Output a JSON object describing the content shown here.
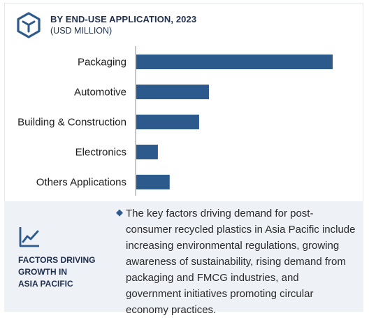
{
  "header": {
    "title": "BY END-USE APPLICATION, 2023",
    "subtitle": "(USD MILLION)",
    "icon": "cube-icon"
  },
  "chart_data": {
    "type": "bar",
    "orientation": "horizontal",
    "categories": [
      "Packaging",
      "Automotive",
      "Building & Construction",
      "Electronics",
      "Others Applications"
    ],
    "values": [
      100,
      37,
      32,
      11,
      17
    ],
    "bar_color": "#2d5a8c",
    "grid": false,
    "title": "BY END-USE APPLICATION, 2023",
    "xlabel": "",
    "ylabel": ""
  },
  "growth": {
    "icon": "trend-line-icon",
    "title_lines": [
      "FACTORS DRIVING",
      "GROWTH IN",
      "ASIA PACIFIC"
    ],
    "bullet_icon": "diamond-bullet-icon",
    "text": "The key factors driving demand for post-consumer recycled plastics in Asia Pacific include increasing environmental regulations, growing awareness of sustainability, rising demand from packaging and FMCG industries, and government initiatives promoting circular economy practices."
  },
  "colors": {
    "accent": "#2d5a8c",
    "title": "#1f2f4e",
    "panel_bg": "#eef1f6"
  }
}
